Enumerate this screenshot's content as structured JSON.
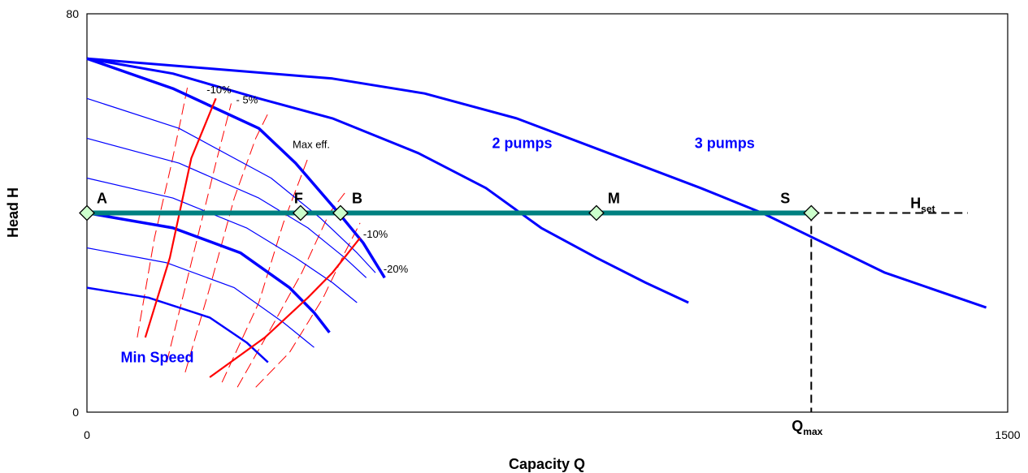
{
  "colors": {
    "pump_curve": "#0000ff",
    "hset_line": "#008080",
    "eff_line": "#ff0000",
    "marker_fill": "#ccffcc",
    "dashed": "#000000"
  },
  "chart_data": {
    "type": "line",
    "title": "",
    "xlabel": "Capacity Q",
    "ylabel": "Head H",
    "xlim": [
      0,
      1500
    ],
    "ylim": [
      0,
      80
    ],
    "x_ticks": [
      "0",
      "1500"
    ],
    "y_ticks": [
      "0",
      "80"
    ],
    "grid": false,
    "series": [
      {
        "name": "",
        "role": "pump-100",
        "width": 3.5,
        "points": [
          [
            0,
            71
          ],
          [
            140,
            65
          ],
          [
            280,
            57
          ],
          [
            340,
            50
          ],
          [
            410,
            40
          ],
          [
            450,
            34
          ],
          [
            485,
            27
          ]
        ]
      },
      {
        "name": "",
        "role": "pump-90",
        "width": 1.2,
        "points": [
          [
            0,
            63
          ],
          [
            150,
            57
          ],
          [
            300,
            47
          ],
          [
            380,
            39
          ],
          [
            440,
            32
          ],
          [
            470,
            28
          ]
        ]
      },
      {
        "name": "",
        "role": "pump-80",
        "width": 1.2,
        "points": [
          [
            0,
            55
          ],
          [
            150,
            50
          ],
          [
            280,
            43
          ],
          [
            360,
            37
          ],
          [
            420,
            31
          ],
          [
            455,
            27
          ]
        ]
      },
      {
        "name": "",
        "role": "pump-70",
        "width": 1.2,
        "points": [
          [
            0,
            47
          ],
          [
            140,
            43
          ],
          [
            260,
            37
          ],
          [
            340,
            31
          ],
          [
            400,
            26
          ],
          [
            440,
            22
          ]
        ]
      },
      {
        "name": "",
        "role": "pump-60",
        "width": 3.5,
        "points": [
          [
            0,
            40
          ],
          [
            140,
            37
          ],
          [
            250,
            32
          ],
          [
            330,
            25
          ],
          [
            370,
            20
          ],
          [
            395,
            16
          ]
        ]
      },
      {
        "name": "",
        "role": "pump-50",
        "width": 1.2,
        "points": [
          [
            0,
            33
          ],
          [
            130,
            30
          ],
          [
            240,
            25
          ],
          [
            320,
            18
          ],
          [
            370,
            13
          ]
        ]
      },
      {
        "name": "",
        "role": "pump-min",
        "width": 2.5,
        "points": [
          [
            0,
            25
          ],
          [
            100,
            23
          ],
          [
            200,
            19
          ],
          [
            260,
            14
          ],
          [
            295,
            10
          ]
        ]
      },
      {
        "name": "2 pumps",
        "role": "two-pumps",
        "width": 3,
        "points": [
          [
            0,
            71
          ],
          [
            140,
            68
          ],
          [
            280,
            63
          ],
          [
            400,
            59
          ],
          [
            540,
            52
          ],
          [
            650,
            45
          ],
          [
            740,
            37
          ],
          [
            830,
            31
          ],
          [
            910,
            26
          ],
          [
            980,
            22
          ]
        ]
      },
      {
        "name": "3 pumps",
        "role": "three-pumps",
        "width": 3,
        "points": [
          [
            0,
            71
          ],
          [
            200,
            69
          ],
          [
            400,
            67
          ],
          [
            550,
            64
          ],
          [
            700,
            59
          ],
          [
            850,
            52
          ],
          [
            1000,
            45
          ],
          [
            1100,
            40
          ],
          [
            1200,
            34
          ],
          [
            1300,
            28
          ],
          [
            1465,
            21
          ]
        ]
      }
    ],
    "efficiency_lines": [
      {
        "name": "-10%",
        "points": [
          [
            95,
            15
          ],
          [
            135,
            31
          ],
          [
            170,
            51
          ],
          [
            210,
            63
          ]
        ]
      },
      {
        "name": "-10%",
        "points": [
          [
            200,
            7
          ],
          [
            290,
            15
          ],
          [
            360,
            23
          ],
          [
            400,
            28
          ],
          [
            445,
            35
          ]
        ]
      }
    ],
    "efficiency_dashed": [
      [
        [
          82,
          15
        ],
        [
          110,
          35
        ],
        [
          138,
          50
        ],
        [
          155,
          60
        ],
        [
          165,
          66
        ]
      ],
      [
        [
          130,
          10
        ],
        [
          170,
          30
        ],
        [
          210,
          50
        ],
        [
          235,
          62
        ]
      ],
      [
        [
          160,
          8
        ],
        [
          200,
          25
        ],
        [
          240,
          43
        ],
        [
          275,
          55
        ],
        [
          295,
          60
        ]
      ],
      [
        [
          220,
          6
        ],
        [
          280,
          22
        ],
        [
          320,
          38
        ],
        [
          360,
          51
        ]
      ],
      [
        [
          245,
          5
        ],
        [
          305,
          18
        ],
        [
          350,
          28
        ],
        [
          395,
          40
        ],
        [
          420,
          44
        ]
      ],
      [
        [
          275,
          5
        ],
        [
          330,
          12
        ],
        [
          385,
          23
        ],
        [
          420,
          32
        ],
        [
          445,
          38
        ]
      ]
    ],
    "hset": {
      "y": 40,
      "x_start": 0,
      "x_end": 1180,
      "dashed_to": 1435,
      "label": "H",
      "label_sub": "set"
    },
    "qmax": {
      "x": 1180,
      "label": "Q",
      "label_sub": "max"
    },
    "operating_points": [
      {
        "label": "A",
        "x": 0,
        "y": 40
      },
      {
        "label": "F",
        "x": 348,
        "y": 40
      },
      {
        "label": "B",
        "x": 413,
        "y": 40
      },
      {
        "label": "M",
        "x": 830,
        "y": 40
      },
      {
        "label": "S",
        "x": 1180,
        "y": 40
      }
    ],
    "curve_labels": [
      {
        "text": "2 pumps",
        "x": 660,
        "y": 53
      },
      {
        "text": "3 pumps",
        "x": 990,
        "y": 53
      },
      {
        "text": "Min Speed",
        "x": 55,
        "y": 10
      }
    ],
    "annotations": [
      {
        "text": "-10%",
        "x": 195,
        "y": 64
      },
      {
        "text": "- 5%",
        "x": 243,
        "y": 62
      },
      {
        "text": "Max eff.",
        "x": 335,
        "y": 53
      },
      {
        "text": "-10%",
        "x": 450,
        "y": 35
      },
      {
        "text": "-20%",
        "x": 483,
        "y": 28
      }
    ]
  }
}
